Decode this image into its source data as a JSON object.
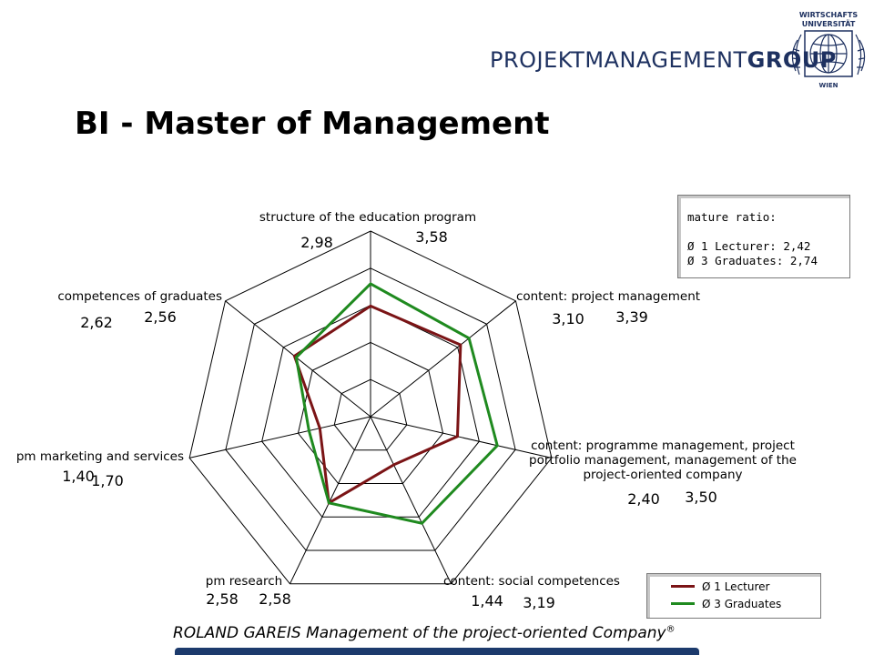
{
  "header": {
    "brand_regular": "PROJEKTMANAGEMENT",
    "brand_bold": "GROUP",
    "seal_top": "WIRTSCHAFTS",
    "seal_mid": "UNIVERSITÄT",
    "seal_bottom": "WIEN",
    "title": "BI - Master of Management"
  },
  "ratio_box": {
    "heading": "mature ratio:",
    "line1": "Ø 1 Lecturer: 2,42",
    "line2": "Ø 3 Graduates: 2,74"
  },
  "footer": {
    "text": "ROLAND GAREIS Management of the project-oriented Company",
    "mark": "®"
  },
  "colors": {
    "lecturer": "#7b1416",
    "graduates": "#1f8a1f",
    "brand": "#1e3160",
    "footer_bar": "#1c3a6c"
  },
  "chart_data": {
    "type": "radar",
    "scale_max": 5,
    "rings": 5,
    "axes": [
      "structure of the education program",
      "content: project management",
      "content: programme management, project portfolio management, management of the project-oriented company",
      "content: social competences",
      "pm research",
      "pm marketing and services",
      "competences of graduates"
    ],
    "axis_label_lines": [
      [
        "structure of the education program"
      ],
      [
        "content: project management"
      ],
      [
        "content: programme management, project",
        "portfolio management, management of the",
        "project-oriented company"
      ],
      [
        "content: social competences"
      ],
      [
        "pm research"
      ],
      [
        "pm marketing and services"
      ],
      [
        "competences of graduates"
      ]
    ],
    "series": [
      {
        "name": "Ø 1 Lecturer",
        "values": [
          2.98,
          3.1,
          2.4,
          1.44,
          2.58,
          1.4,
          2.62
        ],
        "labels": [
          "2,98",
          "3,10",
          "2,40",
          "1,44",
          "2,58",
          "1,40",
          "2,62"
        ]
      },
      {
        "name": "Ø 3 Graduates",
        "values": [
          3.58,
          3.39,
          3.5,
          3.19,
          2.58,
          1.7,
          2.56
        ],
        "labels": [
          "3,58",
          "3,39",
          "3,50",
          "3,19",
          "2,58",
          "1,70",
          "2,56"
        ]
      }
    ],
    "legend_position": "bottom-right"
  }
}
